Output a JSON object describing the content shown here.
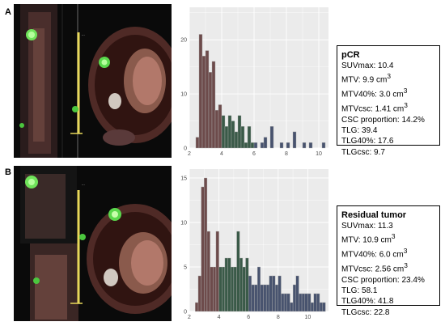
{
  "panels": [
    {
      "letter": "A",
      "stats_title": "pCR",
      "stats": [
        {
          "label": "SUVmax:",
          "value": "10.4",
          "sup": ""
        },
        {
          "label": "MTV:",
          "value": "9.9 cm",
          "sup": "3"
        },
        {
          "label": "MTV40%:",
          "value": "3.0 cm",
          "sup": "3"
        },
        {
          "label": "MTVcsc:",
          "value": "1.41 cm",
          "sup": "3"
        },
        {
          "label": "CSC proportion:",
          "value": "14.2%",
          "sup": ""
        },
        {
          "label": "TLG:",
          "value": "39.4",
          "sup": ""
        },
        {
          "label": "TLG40%:",
          "value": "17.6",
          "sup": ""
        },
        {
          "label": "TLGcsc:",
          "value": "9.7",
          "sup": ""
        }
      ]
    },
    {
      "letter": "B",
      "stats_title": "Residual tumor",
      "stats": [
        {
          "label": "SUVmax:",
          "value": "11.3",
          "sup": ""
        },
        {
          "label": "MTV:",
          "value": "10.9 cm",
          "sup": "3"
        },
        {
          "label": "MTV40%:",
          "value": "6.0 cm",
          "sup": "3"
        },
        {
          "label": "MTVcsc:",
          "value": "2.56 cm",
          "sup": "3"
        },
        {
          "label": "CSC proportion:",
          "value": "23.4%",
          "sup": ""
        },
        {
          "label": "TLG:",
          "value": "58.1",
          "sup": ""
        },
        {
          "label": "TLG40%:",
          "value": "41.8",
          "sup": ""
        },
        {
          "label": "TLGcsc:",
          "value": "22.8",
          "sup": ""
        }
      ]
    }
  ],
  "colors": {
    "panel_bg": "#ebebeb",
    "grid": "#ffffff",
    "bar_low": "#6d4b4b",
    "bar_mid": "#3a5a48",
    "bar_high": "#48536e",
    "bar_edge": "#b0b0b0"
  },
  "chart_data": [
    {
      "type": "bar",
      "title": "",
      "xlabel": "",
      "ylabel": "",
      "xlim": [
        2.0,
        10.6
      ],
      "ylim": [
        0,
        26
      ],
      "x_ticks": [
        2,
        4,
        6,
        8,
        10
      ],
      "y_ticks": [
        0,
        10,
        20
      ],
      "bin_width": 0.2,
      "threshold_1": 4.0,
      "threshold_2": 6.0,
      "bin_starts": [
        2.4,
        2.6,
        2.8,
        3.0,
        3.2,
        3.4,
        3.6,
        3.8,
        4.0,
        4.2,
        4.4,
        4.6,
        4.8,
        5.0,
        5.2,
        5.4,
        5.6,
        5.8,
        6.0,
        6.2,
        6.4,
        6.6,
        6.8,
        7.0,
        7.2,
        7.4,
        7.6,
        7.8,
        8.0,
        8.2,
        8.4,
        8.6,
        8.8,
        9.0,
        9.2,
        9.4,
        9.6,
        9.8,
        10.0,
        10.2
      ],
      "values": [
        2,
        21,
        17,
        18,
        14,
        16,
        7,
        8,
        6,
        4,
        6,
        5,
        3,
        6,
        4,
        1,
        4,
        1,
        1,
        0,
        1,
        2,
        0,
        4,
        0,
        0,
        1,
        0,
        1,
        0,
        3,
        0,
        0,
        1,
        0,
        1,
        0,
        0,
        0,
        1
      ]
    },
    {
      "type": "bar",
      "title": "",
      "xlabel": "",
      "ylabel": "",
      "xlim": [
        2.0,
        11.4
      ],
      "ylim": [
        0,
        16
      ],
      "x_ticks": [
        2,
        4,
        6,
        8,
        10
      ],
      "y_ticks": [
        0,
        5,
        10,
        15
      ],
      "bin_width": 0.2,
      "threshold_1": 4.0,
      "threshold_2": 6.0,
      "bin_starts": [
        2.4,
        2.6,
        2.8,
        3.0,
        3.2,
        3.4,
        3.6,
        3.8,
        4.0,
        4.2,
        4.4,
        4.6,
        4.8,
        5.0,
        5.2,
        5.4,
        5.6,
        5.8,
        6.0,
        6.2,
        6.4,
        6.6,
        6.8,
        7.0,
        7.2,
        7.4,
        7.6,
        7.8,
        8.0,
        8.2,
        8.4,
        8.6,
        8.8,
        9.0,
        9.2,
        9.4,
        9.6,
        9.8,
        10.0,
        10.2,
        10.4,
        10.6,
        10.8,
        11.0
      ],
      "values": [
        1,
        4,
        14,
        15,
        9,
        5,
        5,
        9,
        5,
        5,
        6,
        6,
        5,
        5,
        9,
        6,
        5,
        6,
        4,
        3,
        3,
        5,
        3,
        3,
        3,
        4,
        4,
        3,
        4,
        2,
        2,
        2,
        1,
        3,
        4,
        2,
        2,
        2,
        2,
        1,
        2,
        2,
        1,
        1
      ]
    }
  ]
}
